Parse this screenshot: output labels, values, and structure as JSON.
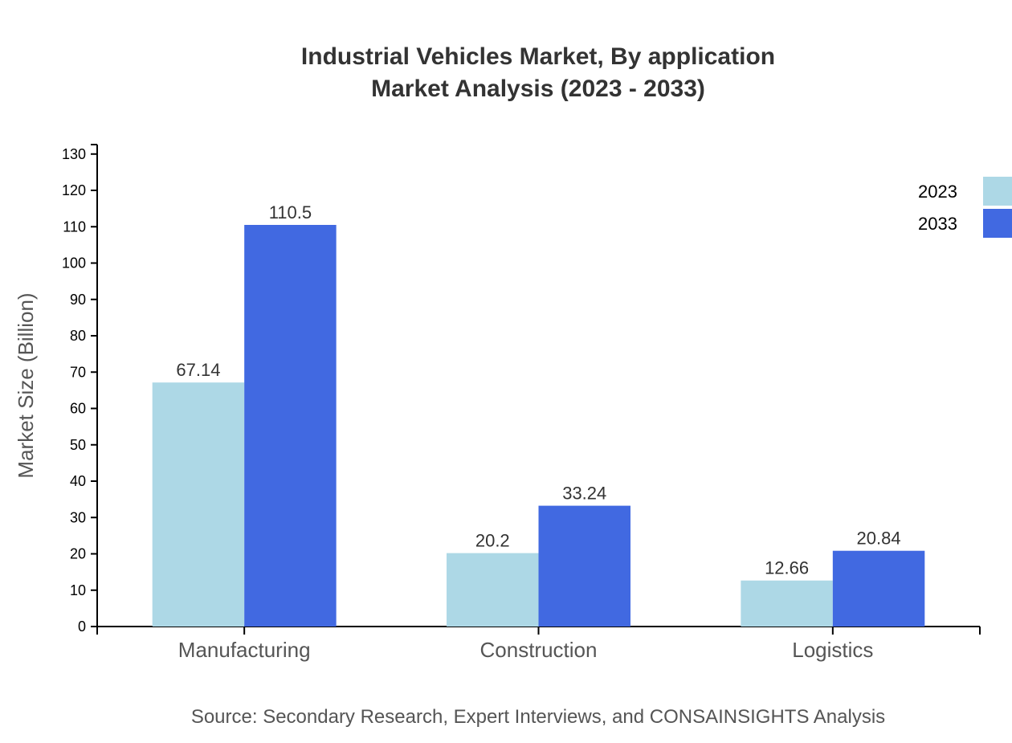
{
  "chart_data": {
    "type": "bar",
    "title": "Industrial Vehicles Market, By application",
    "subtitle": "Market Analysis (2023 - 2033)",
    "xlabel": "",
    "ylabel": "Market Size (Billion)",
    "categories": [
      "Manufacturing",
      "Construction",
      "Logistics"
    ],
    "series": [
      {
        "name": "2023",
        "color": "#ADD8E6",
        "values": [
          67.14,
          20.2,
          12.66
        ]
      },
      {
        "name": "2033",
        "color": "#4169E1",
        "values": [
          110.5,
          33.24,
          20.84
        ]
      }
    ],
    "ylim": [
      0,
      132.6
    ],
    "yticks": [
      0,
      10,
      20,
      30,
      40,
      50,
      60,
      70,
      80,
      90,
      100,
      110,
      120,
      130
    ],
    "grid": false,
    "legend": "top-right",
    "source": "Source: Secondary Research, Expert Interviews, and CONSAINSIGHTS Analysis"
  }
}
